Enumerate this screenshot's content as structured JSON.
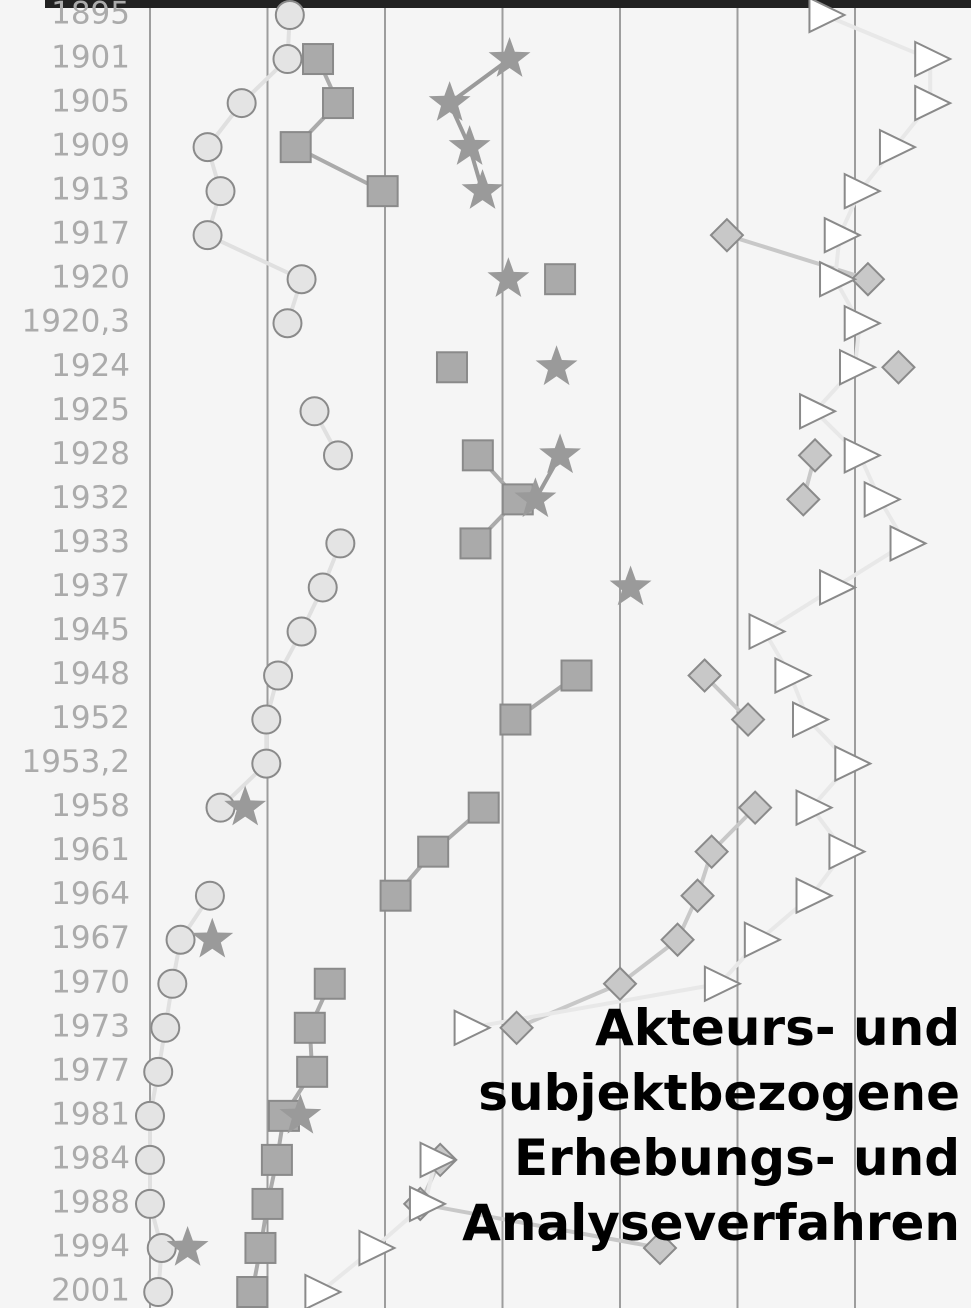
{
  "chart_data": {
    "type": "line",
    "title": [
      "Akteurs- und",
      "subjektbezogene",
      "Erhebungs- und",
      "Analyseverfahren"
    ],
    "categories": [
      "1895",
      "1901",
      "1905",
      "1909",
      "1913",
      "1917",
      "1920",
      "1920,3",
      "1924",
      "1925",
      "1928",
      "1932",
      "1933",
      "1937",
      "1945",
      "1948",
      "1952",
      "1953,2",
      "1958",
      "1961",
      "1964",
      "1967",
      "1970",
      "1973",
      "1977",
      "1981",
      "1984",
      "1988",
      "1994",
      "2001"
    ],
    "xlim": [
      0,
      7
    ],
    "xticks": [
      0,
      1,
      2,
      3,
      4,
      5,
      6
    ],
    "grid": true,
    "series": [
      {
        "color": "#e4e4e4",
        "marker": "circle",
        "values": [
          1.19,
          1.17,
          0.78,
          0.49,
          0.6,
          0.49,
          1.29,
          1.17,
          null,
          1.4,
          1.6,
          null,
          1.62,
          1.47,
          1.29,
          1.09,
          0.99,
          0.99,
          0.6,
          null,
          0.51,
          0.26,
          0.19,
          0.13,
          0.07,
          0,
          0,
          0,
          0.1,
          0.07
        ]
      },
      {
        "color": "#aaaaaa",
        "marker": "square",
        "values": [
          null,
          1.43,
          1.6,
          1.24,
          1.98,
          null,
          3.49,
          null,
          2.57,
          null,
          2.79,
          3.13,
          2.77,
          null,
          null,
          3.63,
          3.11,
          null,
          2.84,
          2.41,
          2.09,
          null,
          1.53,
          1.36,
          1.38,
          1.14,
          1.08,
          1.0,
          0.94,
          0.87
        ]
      },
      {
        "color": "#9a9a9a",
        "marker": "star",
        "values": [
          null,
          3.06,
          2.55,
          2.72,
          2.83,
          null,
          3.05,
          null,
          3.46,
          null,
          3.49,
          3.28,
          null,
          4.09,
          null,
          null,
          null,
          null,
          0.81,
          null,
          null,
          0.53,
          null,
          null,
          null,
          1.28,
          null,
          null,
          0.32,
          null
        ]
      },
      {
        "color": "#c8c8c8",
        "marker": "diamond",
        "values": [
          null,
          null,
          null,
          null,
          null,
          4.91,
          6.11,
          null,
          6.37,
          null,
          5.66,
          5.56,
          null,
          null,
          null,
          4.72,
          5.09,
          null,
          5.15,
          4.78,
          4.66,
          4.49,
          4.0,
          3.12,
          null,
          null,
          2.47,
          2.3,
          4.34,
          null
        ]
      },
      {
        "color": "#ffffff",
        "marker": "triangle",
        "values": [
          5.74,
          6.64,
          6.64,
          6.34,
          6.04,
          5.87,
          5.83,
          6.04,
          6.0,
          5.66,
          6.04,
          6.21,
          6.43,
          5.83,
          5.23,
          5.45,
          5.6,
          5.96,
          5.63,
          5.91,
          5.63,
          5.19,
          4.85,
          2.72,
          null,
          null,
          2.43,
          2.34,
          1.91,
          1.45
        ]
      }
    ]
  }
}
